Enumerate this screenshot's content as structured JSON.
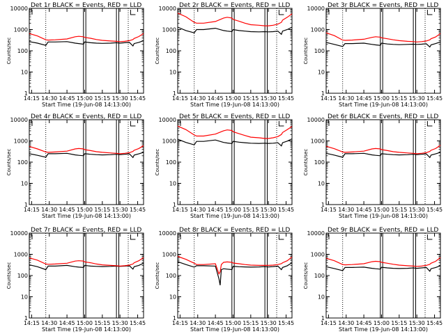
{
  "shared": {
    "ylabel": "Counts/sec",
    "xlabel": "Start Time (19-Jun-08 14:13:00)",
    "y_ticks": [
      "1",
      "10",
      "100",
      "1000",
      "10000"
    ],
    "x_ticks": [
      "14:15",
      "14:30",
      "14:45",
      "15:00",
      "15:15",
      "15:30",
      "15:45"
    ],
    "colors": {
      "events": "#000000",
      "lld": "#ff0000"
    }
  },
  "chart_data": [
    {
      "type": "line",
      "title": "Det 1r BLACK = Events, RED = LLD",
      "x": [
        "14:13",
        "14:20",
        "14:27",
        "14:29",
        "14:35",
        "14:45",
        "14:52",
        "14:55",
        "14:59",
        "15:00",
        "15:05",
        "15:10",
        "15:15",
        "15:22",
        "15:27",
        "15:30",
        "15:34",
        "15:38",
        "15:41",
        "15:42",
        "15:46",
        "15:50"
      ],
      "series": [
        {
          "name": "BLACK = Events",
          "values": [
            270,
            230,
            180,
            260,
            260,
            270,
            230,
            220,
            205,
            260,
            240,
            230,
            225,
            230,
            240,
            230,
            240,
            250,
            170,
            220,
            250,
            300
          ]
        },
        {
          "name": "RED = LLD",
          "values": [
            650,
            500,
            330,
            320,
            330,
            360,
            460,
            480,
            460,
            430,
            390,
            340,
            310,
            290,
            280,
            270,
            280,
            300,
            340,
            380,
            470,
            650
          ]
        }
      ],
      "ylim": [
        1,
        10000
      ],
      "yscale": "log",
      "xlim": [
        "14:13",
        "15:50"
      ]
    },
    {
      "type": "line",
      "title": "Det 2r BLACK = Events, RED = LLD",
      "x": [
        "14:13",
        "14:20",
        "14:27",
        "14:29",
        "14:35",
        "14:45",
        "14:52",
        "14:55",
        "14:59",
        "15:00",
        "15:05",
        "15:10",
        "15:15",
        "15:22",
        "15:27",
        "15:30",
        "15:34",
        "15:38",
        "15:41",
        "15:42",
        "15:46",
        "15:50"
      ],
      "series": [
        {
          "name": "BLACK = Events",
          "values": [
            1300,
            900,
            700,
            1000,
            1000,
            1150,
            900,
            850,
            800,
            1000,
            900,
            850,
            800,
            780,
            800,
            780,
            800,
            850,
            600,
            850,
            1000,
            1300
          ]
        },
        {
          "name": "RED = LLD",
          "values": [
            6000,
            4000,
            2200,
            2000,
            2000,
            2400,
            3500,
            3800,
            3500,
            3000,
            2500,
            2000,
            1700,
            1600,
            1500,
            1500,
            1600,
            1800,
            2200,
            2800,
            3800,
            5500
          ]
        }
      ],
      "ylim": [
        1,
        10000
      ],
      "yscale": "log",
      "xlim": [
        "14:13",
        "15:50"
      ]
    },
    {
      "type": "line",
      "title": "Det 3r BLACK = Events, RED = LLD",
      "x": [
        "14:13",
        "14:20",
        "14:27",
        "14:29",
        "14:35",
        "14:45",
        "14:52",
        "14:55",
        "14:59",
        "15:00",
        "15:05",
        "15:10",
        "15:15",
        "15:22",
        "15:27",
        "15:30",
        "15:34",
        "15:38",
        "15:41",
        "15:42",
        "15:46",
        "15:50"
      ],
      "series": [
        {
          "name": "BLACK = Events",
          "values": [
            250,
            200,
            160,
            220,
            220,
            230,
            200,
            190,
            180,
            230,
            210,
            200,
            195,
            200,
            205,
            200,
            205,
            215,
            150,
            190,
            220,
            260
          ]
        },
        {
          "name": "RED = LLD",
          "values": [
            700,
            520,
            320,
            310,
            320,
            350,
            430,
            460,
            440,
            410,
            370,
            330,
            300,
            280,
            270,
            260,
            270,
            290,
            330,
            370,
            450,
            650
          ]
        }
      ],
      "ylim": [
        1,
        10000
      ],
      "yscale": "log",
      "xlim": [
        "14:13",
        "15:50"
      ]
    },
    {
      "type": "line",
      "title": "Det 4r BLACK = Events, RED = LLD",
      "x": [
        "14:13",
        "14:20",
        "14:27",
        "14:29",
        "14:35",
        "14:45",
        "14:52",
        "14:55",
        "14:59",
        "15:00",
        "15:05",
        "15:10",
        "15:15",
        "15:22",
        "15:27",
        "15:30",
        "15:34",
        "15:38",
        "15:41",
        "15:42",
        "15:46",
        "15:50"
      ],
      "series": [
        {
          "name": "BLACK = Events",
          "values": [
            250,
            210,
            170,
            250,
            250,
            260,
            220,
            210,
            200,
            250,
            235,
            225,
            220,
            225,
            235,
            225,
            235,
            245,
            165,
            215,
            245,
            290
          ]
        },
        {
          "name": "RED = LLD",
          "values": [
            550,
            420,
            300,
            290,
            300,
            330,
            420,
            440,
            420,
            390,
            350,
            310,
            290,
            270,
            260,
            250,
            260,
            280,
            320,
            360,
            440,
            600
          ]
        }
      ],
      "ylim": [
        1,
        10000
      ],
      "yscale": "log",
      "xlim": [
        "14:13",
        "15:50"
      ]
    },
    {
      "type": "line",
      "title": "Det 5r BLACK = Events, RED = LLD",
      "x": [
        "14:13",
        "14:20",
        "14:27",
        "14:29",
        "14:35",
        "14:45",
        "14:52",
        "14:55",
        "14:59",
        "15:00",
        "15:05",
        "15:10",
        "15:15",
        "15:22",
        "15:27",
        "15:30",
        "15:34",
        "15:38",
        "15:41",
        "15:42",
        "15:46",
        "15:50"
      ],
      "series": [
        {
          "name": "BLACK = Events",
          "values": [
            1200,
            850,
            650,
            950,
            950,
            1100,
            850,
            800,
            750,
            950,
            870,
            820,
            780,
            760,
            780,
            760,
            780,
            820,
            580,
            820,
            980,
            1250
          ]
        },
        {
          "name": "RED = LLD",
          "values": [
            5000,
            3400,
            1900,
            1700,
            1700,
            2100,
            3000,
            3300,
            3100,
            2700,
            2200,
            1800,
            1500,
            1400,
            1300,
            1300,
            1400,
            1600,
            2000,
            2500,
            3400,
            4800
          ]
        }
      ],
      "ylim": [
        1,
        10000
      ],
      "yscale": "log",
      "xlim": [
        "14:13",
        "15:50"
      ]
    },
    {
      "type": "line",
      "title": "Det 6r BLACK = Events, RED = LLD",
      "x": [
        "14:13",
        "14:20",
        "14:27",
        "14:29",
        "14:35",
        "14:45",
        "14:52",
        "14:55",
        "14:59",
        "15:00",
        "15:05",
        "15:10",
        "15:15",
        "15:22",
        "15:27",
        "15:30",
        "15:34",
        "15:38",
        "15:41",
        "15:42",
        "15:46",
        "15:50"
      ],
      "series": [
        {
          "name": "BLACK = Events",
          "values": [
            260,
            215,
            170,
            250,
            250,
            260,
            220,
            210,
            200,
            250,
            235,
            225,
            220,
            225,
            235,
            225,
            235,
            245,
            165,
            215,
            245,
            290
          ]
        },
        {
          "name": "RED = LLD",
          "values": [
            560,
            430,
            300,
            290,
            300,
            330,
            420,
            440,
            420,
            390,
            350,
            310,
            290,
            270,
            260,
            250,
            260,
            280,
            320,
            360,
            440,
            620
          ]
        }
      ],
      "ylim": [
        1,
        10000
      ],
      "yscale": "log",
      "xlim": [
        "14:13",
        "15:50"
      ]
    },
    {
      "type": "line",
      "title": "Det 7r BLACK = Events, RED = LLD",
      "x": [
        "14:13",
        "14:20",
        "14:27",
        "14:29",
        "14:35",
        "14:45",
        "14:52",
        "14:55",
        "14:59",
        "15:00",
        "15:05",
        "15:10",
        "15:15",
        "15:22",
        "15:27",
        "15:30",
        "15:34",
        "15:38",
        "15:41",
        "15:42",
        "15:46",
        "15:50"
      ],
      "series": [
        {
          "name": "BLACK = Events",
          "values": [
            320,
            260,
            190,
            280,
            280,
            300,
            260,
            250,
            240,
            300,
            280,
            270,
            265,
            270,
            280,
            270,
            280,
            290,
            200,
            260,
            300,
            380
          ]
        },
        {
          "name": "RED = LLD",
          "values": [
            680,
            530,
            350,
            340,
            350,
            380,
            480,
            500,
            480,
            440,
            400,
            350,
            320,
            300,
            290,
            280,
            290,
            310,
            350,
            400,
            500,
            700
          ]
        }
      ],
      "ylim": [
        1,
        10000
      ],
      "yscale": "log",
      "xlim": [
        "14:13",
        "15:50"
      ]
    },
    {
      "type": "line",
      "title": "Det 8r BLACK = Events, RED = LLD",
      "x": [
        "14:13",
        "14:20",
        "14:27",
        "14:29",
        "14:35",
        "14:45",
        "14:48",
        "14:49",
        "14:50",
        "14:52",
        "14:55",
        "14:59",
        "15:00",
        "15:05",
        "15:10",
        "15:15",
        "15:22",
        "15:27",
        "15:30",
        "15:34",
        "15:38",
        "15:41",
        "15:42",
        "15:46",
        "15:50"
      ],
      "series": [
        {
          "name": "BLACK = Events",
          "values": [
            450,
            330,
            250,
            290,
            290,
            280,
            70,
            35,
            190,
            210,
            200,
            190,
            270,
            260,
            255,
            250,
            255,
            265,
            255,
            265,
            280,
            190,
            240,
            290,
            400
          ]
        },
        {
          "name": "RED = LLD",
          "values": [
            800,
            580,
            380,
            330,
            330,
            360,
            120,
            150,
            330,
            420,
            440,
            420,
            390,
            360,
            330,
            310,
            300,
            300,
            300,
            310,
            330,
            360,
            400,
            500,
            750
          ]
        }
      ],
      "ylim": [
        1,
        10000
      ],
      "yscale": "log",
      "xlim": [
        "14:13",
        "15:50"
      ]
    },
    {
      "type": "line",
      "title": "Det 9r BLACK = Events, RED = LLD",
      "x": [
        "14:13",
        "14:20",
        "14:27",
        "14:29",
        "14:35",
        "14:45",
        "14:52",
        "14:55",
        "14:59",
        "15:00",
        "15:05",
        "15:10",
        "15:15",
        "15:22",
        "15:27",
        "15:30",
        "15:34",
        "15:38",
        "15:41",
        "15:42",
        "15:46",
        "15:50"
      ],
      "series": [
        {
          "name": "BLACK = Events",
          "values": [
            260,
            215,
            170,
            240,
            240,
            250,
            220,
            210,
            200,
            245,
            230,
            220,
            215,
            220,
            230,
            220,
            230,
            240,
            160,
            210,
            240,
            290
          ]
        },
        {
          "name": "RED = LLD",
          "values": [
            650,
            500,
            330,
            320,
            330,
            360,
            450,
            470,
            450,
            420,
            380,
            340,
            310,
            290,
            280,
            270,
            280,
            300,
            340,
            380,
            470,
            700
          ]
        }
      ],
      "ylim": [
        1,
        10000
      ],
      "yscale": "log",
      "xlim": [
        "14:13",
        "15:50"
      ]
    }
  ]
}
